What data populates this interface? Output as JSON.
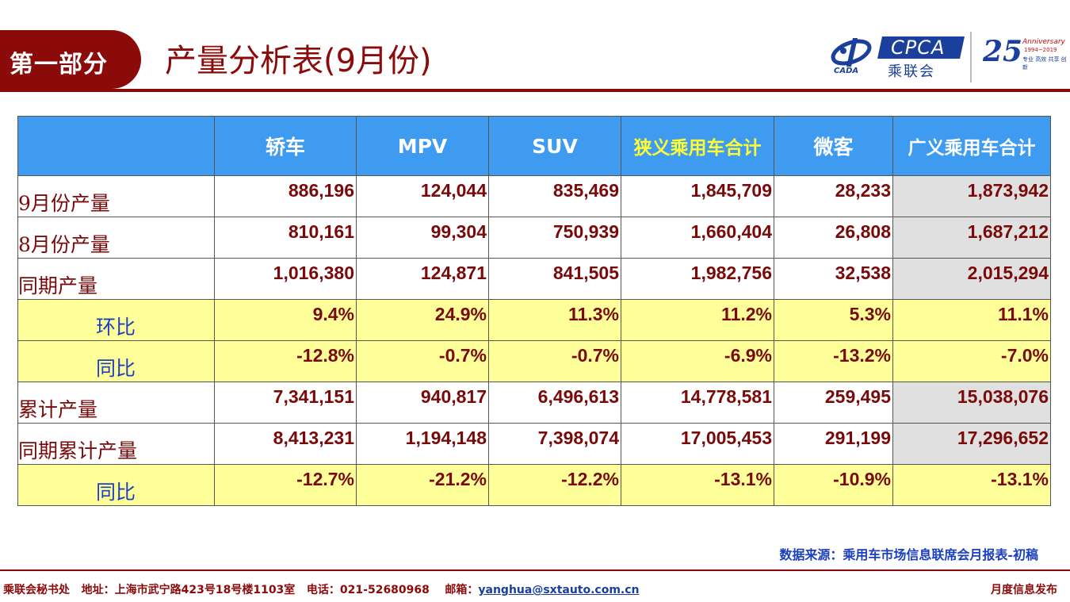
{
  "header": {
    "section_label": "第一部分",
    "title": "产量分析表(9月份)"
  },
  "logos": {
    "cada": "CADA",
    "cpca": "CPCA",
    "cpca_cn": "乘联会",
    "anniversary_number": "25",
    "anniversary_text": "Anniversary",
    "anniversary_years": "1994~2019",
    "anniversary_slogan": "专业 高效 共享 创新",
    "brand_color": "#1a3f9c"
  },
  "table": {
    "columns": [
      "",
      "轿车",
      "MPV",
      "SUV",
      "狭义乘用车合计",
      "微客",
      "广义乘用车合计"
    ],
    "rows": [
      {
        "label": "9月份产量",
        "style": "plain",
        "values": [
          "886,196",
          "124,044",
          "835,469",
          "1,845,709",
          "28,233",
          "1,873,942"
        ]
      },
      {
        "label": "8月份产量",
        "style": "plain",
        "values": [
          "810,161",
          "99,304",
          "750,939",
          "1,660,404",
          "26,808",
          "1,687,212"
        ]
      },
      {
        "label": "同期产量",
        "style": "plain",
        "values": [
          "1,016,380",
          "124,871",
          "841,505",
          "1,982,756",
          "32,538",
          "2,015,294"
        ]
      },
      {
        "label": "环比",
        "style": "yellow",
        "values": [
          "9.4%",
          "24.9%",
          "11.3%",
          "11.2%",
          "5.3%",
          "11.1%"
        ]
      },
      {
        "label": "同比",
        "style": "yellow",
        "values": [
          "-12.8%",
          "-0.7%",
          "-0.7%",
          "-6.9%",
          "-13.2%",
          "-7.0%"
        ]
      },
      {
        "label": "累计产量",
        "style": "plain",
        "values": [
          "7,341,151",
          "940,817",
          "6,496,613",
          "14,778,581",
          "259,495",
          "15,038,076"
        ]
      },
      {
        "label": "同期累计产量",
        "style": "plain",
        "values": [
          "8,413,231",
          "1,194,148",
          "7,398,074",
          "17,005,453",
          "291,199",
          "17,296,652"
        ]
      },
      {
        "label": "同比",
        "style": "yellow",
        "values": [
          "-12.7%",
          "-21.2%",
          "-12.2%",
          "-13.1%",
          "-10.9%",
          "-13.1%"
        ]
      }
    ]
  },
  "source": "数据来源：乘用车市场信息联席会月报表-初稿",
  "footer": {
    "org": "乘联会秘书处",
    "address": "地址：上海市武宁路423号18号楼1103室",
    "phone": "电话：021-52680968",
    "email_label": "邮箱：",
    "email": "yanghua@sxtauto.com.cn",
    "right": "月度信息发布"
  }
}
